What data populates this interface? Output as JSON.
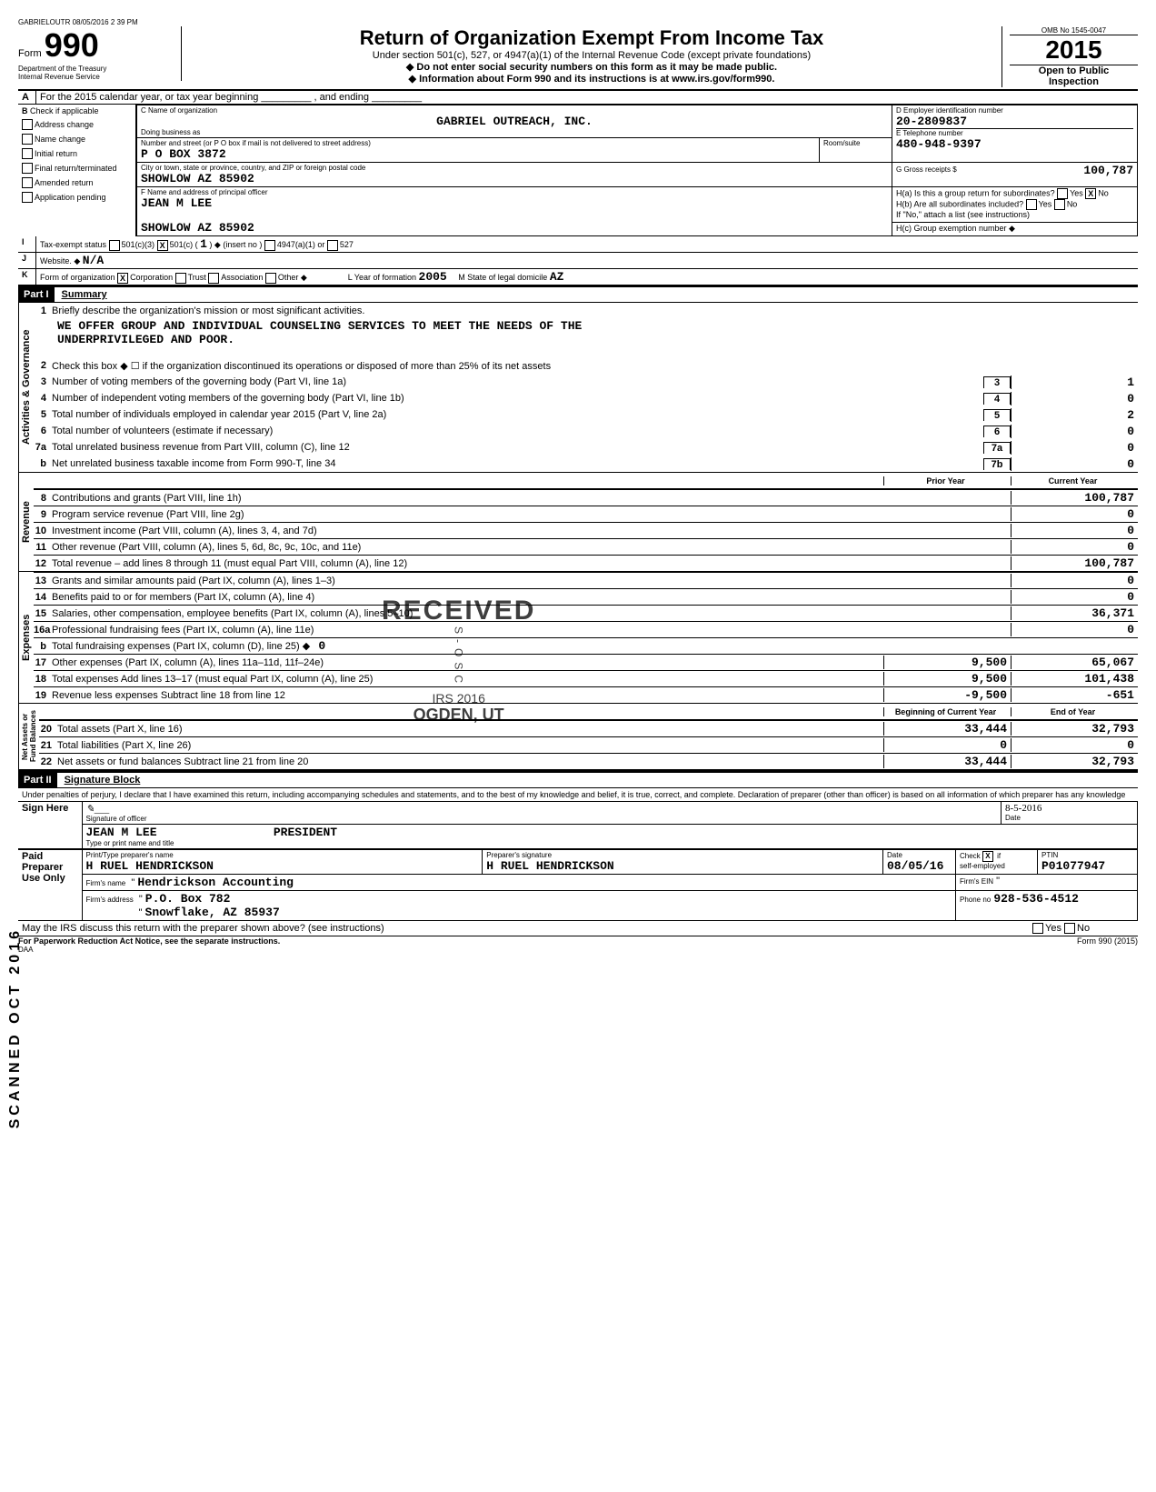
{
  "header_stamp": "GABRIELOUTR 08/05/2016 2 39 PM",
  "form": {
    "label_form": "Form",
    "number": "990",
    "dept": "Department of the Treasury",
    "irs": "Internal Revenue Service",
    "title": "Return of Organization Exempt From Income Tax",
    "subtitle1": "Under section 501(c), 527, or 4947(a)(1) of the Internal Revenue Code (except private foundations)",
    "subtitle2": "◆ Do not enter social security numbers on this form as it may be made public.",
    "subtitle3": "◆ Information about Form 990 and its instructions is at www.irs.gov/form990.",
    "omb": "OMB No 1545-0047",
    "year": "2015",
    "open": "Open to Public",
    "inspection": "Inspection"
  },
  "line_a": "For the 2015 calendar year, or tax year beginning _________ , and ending _________",
  "checks": {
    "b_label": "Check if applicable",
    "address_change": "Address change",
    "name_change": "Name change",
    "initial_return": "Initial return",
    "final_return": "Final return/terminated",
    "amended_return": "Amended return",
    "application_pending": "Application pending"
  },
  "org": {
    "c_label": "C Name of organization",
    "name": "GABRIEL OUTREACH, INC.",
    "dba_label": "Doing business as",
    "addr_label": "Number and street (or P O box if mail is not delivered to street address)",
    "addr": "P O BOX 3872",
    "room_label": "Room/suite",
    "city_label": "City or town, state or province, country, and ZIP or foreign postal code",
    "city": "SHOWLOW             AZ 85902",
    "f_label": "F Name and address of principal officer",
    "officer": "JEAN M LEE",
    "officer_city": "SHOWLOW             AZ 85902"
  },
  "d": {
    "label": "D Employer identification number",
    "value": "20-2809837"
  },
  "e": {
    "label": "E Telephone number",
    "value": "480-948-9397"
  },
  "g": {
    "label": "G Gross receipts $",
    "value": "100,787"
  },
  "h": {
    "a": "H(a) Is this a group return for subordinates?",
    "b": "H(b) Are all subordinates included?",
    "note": "If \"No,\" attach a list (see instructions)",
    "c": "H(c) Group exemption number ◆",
    "yes": "Yes",
    "no": "No",
    "x": "X"
  },
  "i": {
    "label": "Tax-exempt status",
    "opts": [
      "501(c)(3)",
      "501(c)",
      "◆ (insert no )",
      "4947(a)(1) or",
      "527"
    ],
    "x": "X",
    "insert": "1"
  },
  "j": {
    "label": "Website. ◆",
    "value": "N/A"
  },
  "k": {
    "label": "Form of organization",
    "opts": [
      "Corporation",
      "Trust",
      "Association",
      "Other ◆"
    ],
    "x": "X"
  },
  "l": {
    "label": "L  Year of formation",
    "value": "2005"
  },
  "m": {
    "label": "M  State of legal domicile",
    "value": "AZ"
  },
  "part1": {
    "num": "Part I",
    "title": "Summary"
  },
  "summary": {
    "q1": "Briefly describe the organization's mission or most significant activities.",
    "mission1": "WE OFFER GROUP AND INDIVIDUAL COUNSELING SERVICES TO MEET THE NEEDS OF THE",
    "mission2": "UNDERPRIVILEGED AND POOR.",
    "q2": "Check this box ◆ ☐ if the organization discontinued its operations or disposed of more than 25% of its net assets",
    "lines": [
      {
        "n": "3",
        "label": "Number of voting members of the governing body (Part VI, line 1a)",
        "box": "3",
        "val": "1"
      },
      {
        "n": "4",
        "label": "Number of independent voting members of the governing body (Part VI, line 1b)",
        "box": "4",
        "val": "0"
      },
      {
        "n": "5",
        "label": "Total number of individuals employed in calendar year 2015 (Part V, line 2a)",
        "box": "5",
        "val": "2"
      },
      {
        "n": "6",
        "label": "Total number of volunteers (estimate if necessary)",
        "box": "6",
        "val": "0"
      },
      {
        "n": "7a",
        "label": "Total unrelated business revenue from Part VIII, column (C), line 12",
        "box": "7a",
        "val": "0"
      },
      {
        "n": "b",
        "label": "Net unrelated business taxable income from Form 990-T, line 34",
        "box": "7b",
        "val": "0"
      }
    ],
    "col_prior": "Prior Year",
    "col_current": "Current Year",
    "revenue": [
      {
        "n": "8",
        "label": "Contributions and grants (Part VIII, line 1h)",
        "prior": "",
        "cur": "100,787"
      },
      {
        "n": "9",
        "label": "Program service revenue (Part VIII, line 2g)",
        "prior": "",
        "cur": "0"
      },
      {
        "n": "10",
        "label": "Investment income (Part VIII, column (A), lines 3, 4, and 7d)",
        "prior": "",
        "cur": "0"
      },
      {
        "n": "11",
        "label": "Other revenue (Part VIII, column (A), lines 5, 6d, 8c, 9c, 10c, and 11e)",
        "prior": "",
        "cur": "0"
      },
      {
        "n": "12",
        "label": "Total revenue – add lines 8 through 11 (must equal Part VIII, column (A), line 12)",
        "prior": "",
        "cur": "100,787"
      }
    ],
    "expenses": [
      {
        "n": "13",
        "label": "Grants and similar amounts paid (Part IX, column (A), lines 1–3)",
        "prior": "",
        "cur": "0"
      },
      {
        "n": "14",
        "label": "Benefits paid to or for members (Part IX, column (A), line 4)",
        "prior": "",
        "cur": "0"
      },
      {
        "n": "15",
        "label": "Salaries, other compensation, employee benefits (Part IX, column (A), lines 5–10)",
        "prior": "",
        "cur": "36,371"
      },
      {
        "n": "16a",
        "label": "Professional fundraising fees (Part IX, column (A), line 11e)",
        "prior": "",
        "cur": "0"
      },
      {
        "n": "b",
        "label": "Total fundraising expenses (Part IX, column (D), line 25) ◆",
        "prior": "",
        "cur": "",
        "inline": "0"
      },
      {
        "n": "17",
        "label": "Other expenses (Part IX, column (A), lines 11a–11d, 11f–24e)",
        "prior": "9,500",
        "cur": "65,067"
      },
      {
        "n": "18",
        "label": "Total expenses  Add lines 13–17 (must equal Part IX, column (A), line 25)",
        "prior": "9,500",
        "cur": "101,438"
      },
      {
        "n": "19",
        "label": "Revenue less expenses  Subtract line 18 from line 12",
        "prior": "-9,500",
        "cur": "-651"
      }
    ],
    "col_begin": "Beginning of Current Year",
    "col_end": "End of Year",
    "netassets": [
      {
        "n": "20",
        "label": "Total assets (Part X, line 16)",
        "prior": "33,444",
        "cur": "32,793"
      },
      {
        "n": "21",
        "label": "Total liabilities (Part X, line 26)",
        "prior": "0",
        "cur": "0"
      },
      {
        "n": "22",
        "label": "Net assets or fund balances  Subtract line 21 from line 20",
        "prior": "33,444",
        "cur": "32,793"
      }
    ],
    "vlabels": {
      "gov": "Activities & Governance",
      "rev": "Revenue",
      "exp": "Expenses",
      "net": "Net Assets or\nFund Balances"
    }
  },
  "part2": {
    "num": "Part II",
    "title": "Signature Block"
  },
  "sig": {
    "perjury": "Under penalties of perjury, I declare that I have examined this return, including accompanying schedules and statements, and to the best of my knowledge and belief, it is true, correct, and complete. Declaration of preparer (other than officer) is based on all information of which preparer has any knowledge",
    "sign_here": "Sign Here",
    "sig_of_officer": "Signature of officer",
    "date": "Date",
    "officer_name": "JEAN M LEE",
    "officer_title": "PRESIDENT",
    "type_print": "Type or print name and title",
    "sig_date": "8-5-2016",
    "paid": "Paid Preparer Use Only",
    "prep_name_label": "Print/Type preparer's name",
    "prep_sig_label": "Preparer's signature",
    "prep_date_label": "Date",
    "check_label": "Check",
    "self_emp": "self-employed",
    "ptin_label": "PTIN",
    "prep_name": "H RUEL HENDRICKSON",
    "prep_sig": "H RUEL HENDRICKSON",
    "prep_date": "08/05/16",
    "ptin": "P01077947",
    "firm_name_label": "Firm's name",
    "firm_name": "Hendrickson Accounting",
    "firm_ein_label": "Firm's EIN",
    "firm_addr_label": "Firm's address",
    "firm_addr1": "P.O. Box 782",
    "firm_addr2": "Snowflake, AZ  85937",
    "phone_label": "Phone no",
    "phone": "928-536-4512",
    "may_irs": "May the IRS discuss this return with the preparer shown above? (see instructions)",
    "paperwork": "For Paperwork Reduction Act Notice, see the separate instructions.",
    "daa": "DAA",
    "form990": "Form 990 (2015)",
    "x": "X",
    "if": "if"
  },
  "stamps": {
    "received": "RECEIVED",
    "rec_line2": "IRS 2016",
    "rec_line3": "OGDEN, UT",
    "scanned": "SCANNED  OCT  2016"
  }
}
